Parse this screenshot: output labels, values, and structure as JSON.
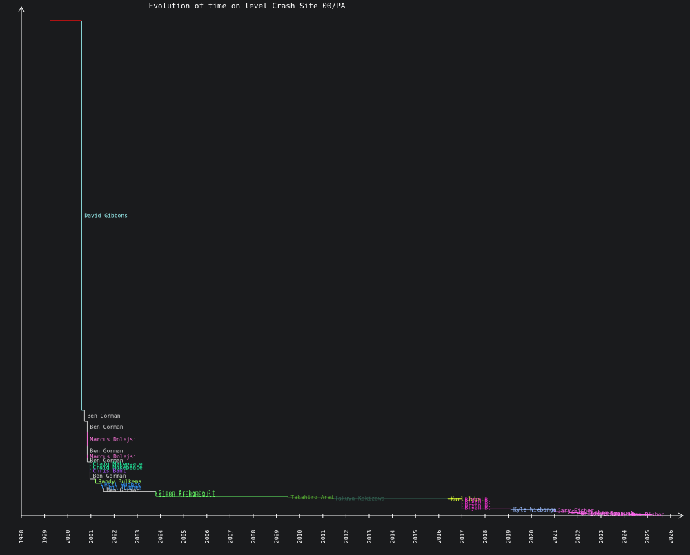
{
  "chart_data": {
    "type": "line",
    "title": "Evolution of time on level Crash Site 00/PA",
    "xlabel": "",
    "ylabel": "",
    "x_tick_labels": [
      "1998",
      "1999",
      "2000",
      "2001",
      "2002",
      "2003",
      "2004",
      "2005",
      "2006",
      "2007",
      "2008",
      "2009",
      "2010",
      "2011",
      "2012",
      "2013",
      "2014",
      "2015",
      "2016",
      "2017",
      "2018",
      "2019",
      "2020",
      "2021",
      "2022",
      "2023",
      "2024",
      "2025",
      "2026"
    ],
    "x_range": [
      1998.0,
      2026.2
    ],
    "y_range": [
      0,
      1000
    ],
    "grid": false,
    "axis_color": "#ffffff",
    "background": "#1a1b1d",
    "initial_segment": {
      "x_start": 1999.25,
      "x_end": 2000.6,
      "y": 975,
      "color": "#e01010"
    },
    "records": [
      {
        "holder": "David Gibbons",
        "date": 2000.6,
        "y": 208,
        "color": "#99f0f0"
      },
      {
        "holder": "Ben Gorman",
        "date": 2000.72,
        "y": 186,
        "color": "#cccccc"
      },
      {
        "holder": "Ben Gorman",
        "date": 2000.84,
        "y": 165,
        "color": "#cccccc"
      },
      {
        "holder": "Marcus Dolejsi",
        "date": 2000.84,
        "y": 137,
        "color": "#ff77dd"
      },
      {
        "holder": "Ben Gorman",
        "date": 2000.84,
        "y": 120,
        "color": "#cccccc"
      },
      {
        "holder": "Marcus Dolejsi",
        "date": 2000.84,
        "y": 113,
        "color": "#ff77dd"
      },
      {
        "holder": "Ben Gorman",
        "date": 2000.84,
        "y": 106,
        "color": "#cccccc"
      },
      {
        "holder": "Craig Makepeace",
        "date": 2000.96,
        "y": 99,
        "color": "#22ffaa"
      },
      {
        "holder": "Craig Makepeace",
        "date": 2000.96,
        "y": 92,
        "color": "#22ffaa"
      },
      {
        "holder": "Chris Bahl",
        "date": 2000.96,
        "y": 86,
        "color": "#aa55ff"
      },
      {
        "holder": "Ben Gorman",
        "date": 2000.96,
        "y": 72,
        "color": "#cccccc"
      },
      {
        "holder": "Randy Bulkema",
        "date": 2001.2,
        "y": 64,
        "color": "#99ff66"
      },
      {
        "holder": "Phil Hughes",
        "date": 2001.45,
        "y": 59,
        "color": "#3399ff"
      },
      {
        "holder": "Phil Hughes",
        "date": 2001.5,
        "y": 54,
        "color": "#3399ff"
      },
      {
        "holder": "Ben Gorman",
        "date": 2001.55,
        "y": 48,
        "color": "#cccccc"
      },
      {
        "holder": "Simon Archambault",
        "date": 2003.8,
        "y": 44,
        "color": "#66ff66"
      },
      {
        "holder": "Simon Archambault",
        "date": 2003.8,
        "y": 38,
        "color": "#66ff66"
      },
      {
        "holder": "Takahiro Arai",
        "date": 2009.5,
        "y": 35,
        "color": "#55aa33"
      },
      {
        "holder": "Takuya Kakizawa",
        "date": 2011.4,
        "y": 34,
        "color": "#336655"
      },
      {
        "holder": "Karl Jobst",
        "date": 2016.4,
        "y": 33,
        "color": "#ddff33"
      },
      {
        "holder": "Bryan B.",
        "date": 2017.0,
        "y": 31,
        "color": "#ee33cc"
      },
      {
        "holder": "Bryan B.",
        "date": 2017.0,
        "y": 24,
        "color": "#ee33cc"
      },
      {
        "holder": "Bryan B.",
        "date": 2017.0,
        "y": 18,
        "color": "#ee33cc"
      },
      {
        "holder": "Bryan B.",
        "date": 2017.0,
        "y": 13,
        "color": "#ee33cc"
      },
      {
        "holder": "Kyle Wiebanga",
        "date": 2019.1,
        "y": 12,
        "color": "#99bbff"
      },
      {
        "holder": "Gary Fisher",
        "date": 2021.0,
        "y": 8,
        "color": "#ff66ee"
      },
      {
        "holder": "Gary Fisher",
        "date": 2021.6,
        "y": 6,
        "color": "#ff66ee"
      },
      {
        "holder": "Kristian Emanuel",
        "date": 2022.0,
        "y": 5,
        "color": "#ff66ee"
      },
      {
        "holder": "Zoe Lohse",
        "date": 2022.4,
        "y": 4,
        "color": "#ff66ee"
      },
      {
        "holder": "Gunlum",
        "date": 2023.5,
        "y": 3,
        "color": "#ff66ee"
      },
      {
        "holder": "Dan Bishop",
        "date": 2024.2,
        "y": 2,
        "color": "#ff66ee"
      }
    ],
    "series_end": 2025.2
  }
}
